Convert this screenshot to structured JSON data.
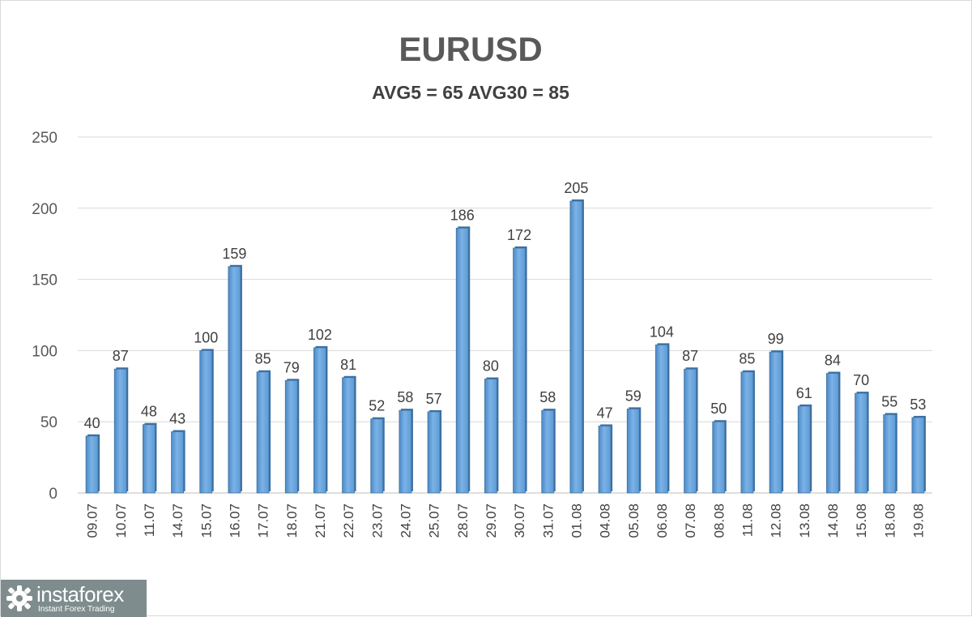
{
  "chart_data": {
    "type": "bar",
    "title": "EURUSD",
    "subtitle": "AVG5 = 65 AVG30 = 85",
    "categories": [
      "09.07",
      "10.07",
      "11.07",
      "14.07",
      "15.07",
      "16.07",
      "17.07",
      "18.07",
      "21.07",
      "22.07",
      "23.07",
      "24.07",
      "25.07",
      "28.07",
      "29.07",
      "30.07",
      "31.07",
      "01.08",
      "04.08",
      "05.08",
      "06.08",
      "07.08",
      "08.08",
      "11.08",
      "12.08",
      "13.08",
      "14.08",
      "15.08",
      "18.08",
      "19.08"
    ],
    "values": [
      40,
      87,
      48,
      43,
      100,
      159,
      85,
      79,
      102,
      81,
      52,
      58,
      57,
      186,
      80,
      172,
      58,
      205,
      47,
      59,
      104,
      87,
      50,
      85,
      99,
      61,
      84,
      70,
      55,
      53
    ],
    "ylim": [
      0,
      250
    ],
    "yticks": [
      0,
      50,
      100,
      150,
      200,
      250
    ],
    "grid": true,
    "bar_color": "#5b9bd5"
  },
  "watermark": {
    "brand": "instaforex",
    "tagline": "Instant Forex Trading",
    "icon": "instaforex-logo-icon"
  }
}
